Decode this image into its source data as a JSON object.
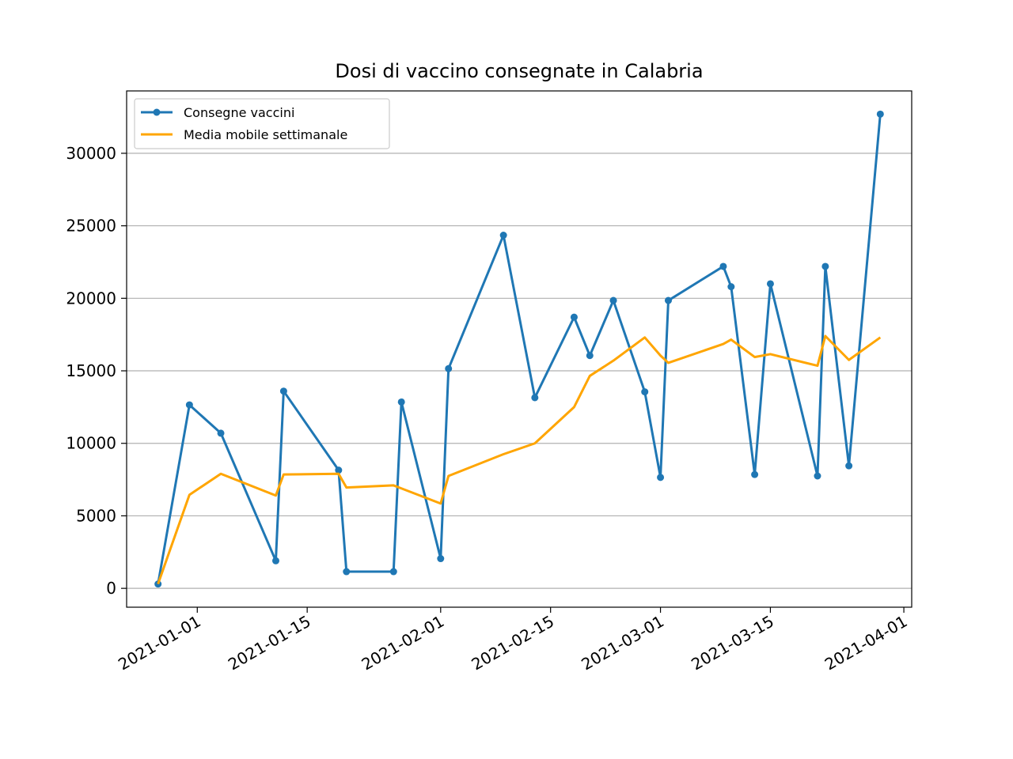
{
  "chart_data": {
    "type": "line",
    "title": "Dosi di vaccino consegnate in Calabria",
    "xlabel": "",
    "ylabel": "",
    "x_type": "date",
    "xlim": [
      "2020-12-23",
      "2021-04-02"
    ],
    "ylim": [
      -1300,
      34300
    ],
    "x_ticks": [
      "2021-01-01",
      "2021-01-15",
      "2021-02-01",
      "2021-02-15",
      "2021-03-01",
      "2021-03-15",
      "2021-04-01"
    ],
    "y_ticks": [
      0,
      5000,
      10000,
      15000,
      20000,
      25000,
      30000
    ],
    "grid": "y",
    "legend_position": "top-left",
    "series": [
      {
        "name": "Consegne vaccini",
        "color": "#1f77b4",
        "marker": "circle",
        "points": [
          [
            "2020-12-27",
            300
          ],
          [
            "2020-12-31",
            12650
          ],
          [
            "2021-01-04",
            10700
          ],
          [
            "2021-01-11",
            1900
          ],
          [
            "2021-01-12",
            13600
          ],
          [
            "2021-01-19",
            8150
          ],
          [
            "2021-01-20",
            1150
          ],
          [
            "2021-01-26",
            1150
          ],
          [
            "2021-01-27",
            12850
          ],
          [
            "2021-02-01",
            2050
          ],
          [
            "2021-02-02",
            15150
          ],
          [
            "2021-02-09",
            24350
          ],
          [
            "2021-02-13",
            13150
          ],
          [
            "2021-02-18",
            18700
          ],
          [
            "2021-02-20",
            16050
          ],
          [
            "2021-02-23",
            19850
          ],
          [
            "2021-02-27",
            13550
          ],
          [
            "2021-03-01",
            7650
          ],
          [
            "2021-03-02",
            19850
          ],
          [
            "2021-03-09",
            22200
          ],
          [
            "2021-03-10",
            20800
          ],
          [
            "2021-03-13",
            7850
          ],
          [
            "2021-03-15",
            21000
          ],
          [
            "2021-03-21",
            7750
          ],
          [
            "2021-03-22",
            22200
          ],
          [
            "2021-03-25",
            8450
          ],
          [
            "2021-03-29",
            32700
          ]
        ]
      },
      {
        "name": "Media mobile settimanale",
        "color": "#ffa500",
        "marker": "none",
        "points": [
          [
            "2020-12-27",
            300
          ],
          [
            "2020-12-31",
            6450
          ],
          [
            "2021-01-04",
            7900
          ],
          [
            "2021-01-11",
            6400
          ],
          [
            "2021-01-12",
            7850
          ],
          [
            "2021-01-19",
            7900
          ],
          [
            "2021-01-20",
            6950
          ],
          [
            "2021-01-26",
            7100
          ],
          [
            "2021-02-01",
            5850
          ],
          [
            "2021-02-02",
            7750
          ],
          [
            "2021-02-09",
            9250
          ],
          [
            "2021-02-13",
            10000
          ],
          [
            "2021-02-18",
            12500
          ],
          [
            "2021-02-20",
            14650
          ],
          [
            "2021-02-23",
            15700
          ],
          [
            "2021-02-27",
            17300
          ],
          [
            "2021-03-01",
            16050
          ],
          [
            "2021-03-02",
            15550
          ],
          [
            "2021-03-09",
            16850
          ],
          [
            "2021-03-10",
            17150
          ],
          [
            "2021-03-13",
            15950
          ],
          [
            "2021-03-15",
            16150
          ],
          [
            "2021-03-21",
            15350
          ],
          [
            "2021-03-22",
            17400
          ],
          [
            "2021-03-25",
            15750
          ],
          [
            "2021-03-29",
            17300
          ]
        ]
      }
    ]
  }
}
